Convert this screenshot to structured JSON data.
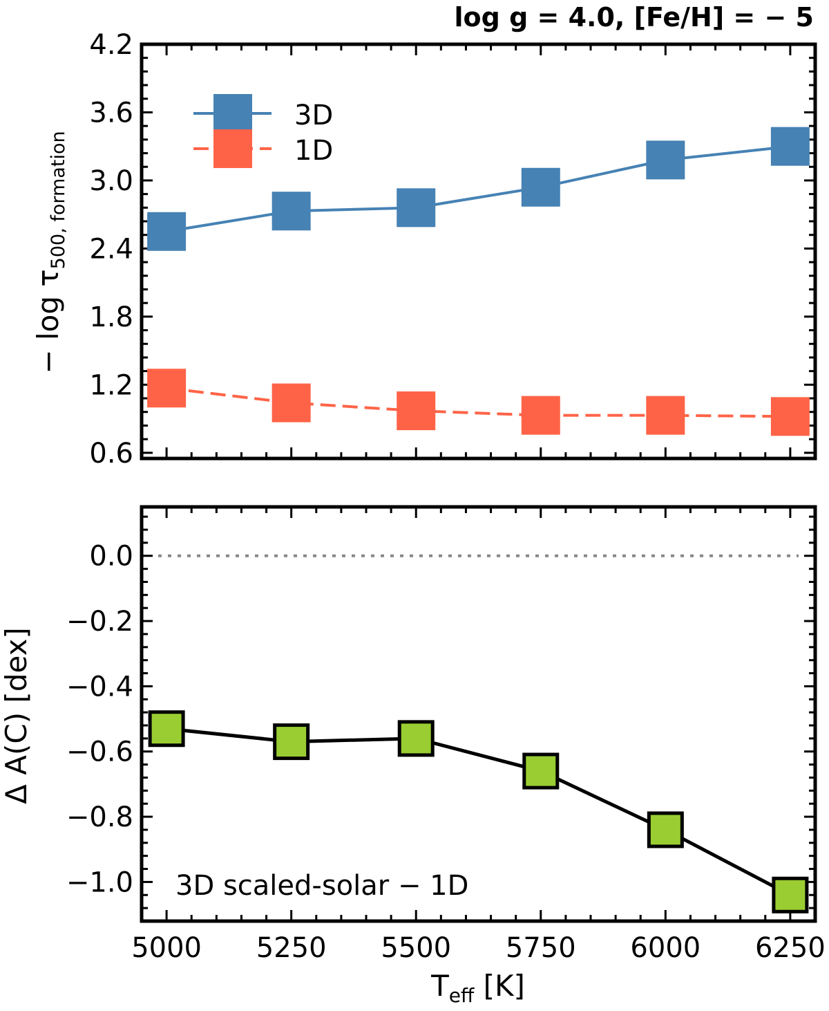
{
  "chart_data": [
    {
      "type": "line",
      "title": "log g = 4.0, [Fe/H] = − 5",
      "xlabel": "T_eff [K]",
      "ylabel": "− log τ_500, formation",
      "ylabel_main": "− log τ",
      "ylabel_sub": "500, formation",
      "xlim": [
        4950,
        6300
      ],
      "ylim": [
        0.55,
        4.2
      ],
      "x": [
        5000,
        5250,
        5500,
        5750,
        6000,
        6250
      ],
      "xticks": [
        5000,
        5250,
        5500,
        5750,
        6000,
        6250
      ],
      "yticks": [
        0.6,
        1.2,
        1.8,
        2.4,
        3.0,
        3.6,
        4.2
      ],
      "ytick_labels": [
        "0.6",
        "1.2",
        "1.8",
        "2.4",
        "3.0",
        "3.6",
        "4.2"
      ],
      "legend_position": "upper-left",
      "series": [
        {
          "name": "3D",
          "values": [
            2.55,
            2.73,
            2.76,
            2.94,
            3.18,
            3.3
          ],
          "color": "#4682b4",
          "linestyle": "solid",
          "marker": "square"
        },
        {
          "name": "1D",
          "values": [
            1.17,
            1.04,
            0.97,
            0.93,
            0.93,
            0.92
          ],
          "color": "#ff6347",
          "linestyle": "dashed",
          "marker": "square"
        }
      ]
    },
    {
      "type": "line",
      "xlabel": "T_eff [K]",
      "xlabel_main": "T",
      "xlabel_sub": "eff",
      "xlabel_unit": " [K]",
      "ylabel": "Δ A(C) [dex]",
      "xlim": [
        4950,
        6300
      ],
      "ylim": [
        -1.12,
        0.15
      ],
      "x": [
        5000,
        5250,
        5500,
        5750,
        6000,
        6250
      ],
      "xticks": [
        5000,
        5250,
        5500,
        5750,
        6000,
        6250
      ],
      "xtick_labels": [
        "5000",
        "5250",
        "5500",
        "5750",
        "6000",
        "6250"
      ],
      "yticks": [
        0.0,
        -0.2,
        -0.4,
        -0.6,
        -0.8,
        -1.0
      ],
      "ytick_labels": [
        "0.0",
        "−0.2",
        "−0.4",
        "−0.6",
        "−0.8",
        "−1.0"
      ],
      "reference_line": {
        "y": 0.0,
        "style": "dotted",
        "color": "#888888"
      },
      "annotation": "3D scaled-solar − 1D",
      "series": [
        {
          "name": "3D scaled-solar − 1D",
          "values": [
            -0.53,
            -0.57,
            -0.56,
            -0.66,
            -0.84,
            -1.04
          ],
          "color": "#000000",
          "marker_fill": "#9acd32",
          "linestyle": "solid",
          "marker": "square"
        }
      ]
    }
  ]
}
